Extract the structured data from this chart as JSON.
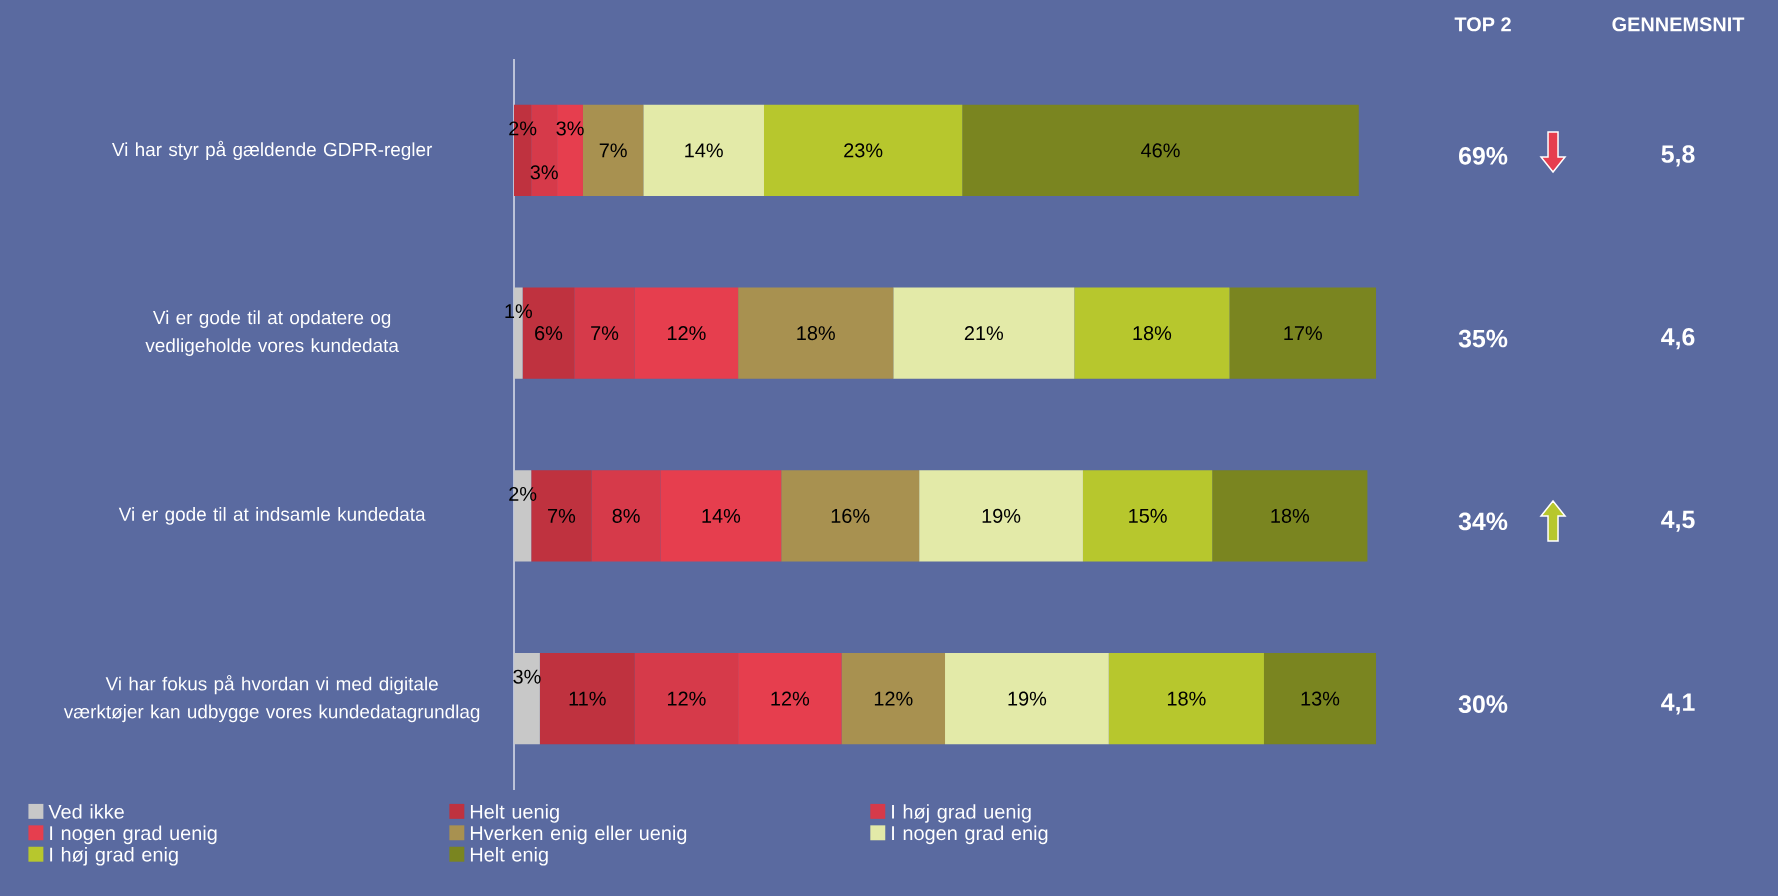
{
  "chart_data": {
    "type": "bar",
    "orientation": "horizontal",
    "stacked": true,
    "legend": "bottom",
    "tick_labels": "y",
    "xlim": [
      0,
      100
    ],
    "categories": [
      "Vi har styr på gældende GDPR-regler",
      "Vi er gode til at opdatere og vedligeholde vores kundedata",
      "Vi er gode til at indsamle kundedata",
      "Vi har fokus på hvordan vi med digitale værktøjer kan udbygge vores kundedatagrundlag"
    ],
    "series": [
      {
        "name": "Ved ikke",
        "color": "#c8c8c8",
        "values": [
          0,
          1,
          2,
          3
        ],
        "value_labels": [
          null,
          "1%",
          "2%",
          "3%"
        ]
      },
      {
        "name": "Helt uenig",
        "color": "#bf323f",
        "values": [
          2,
          6,
          7,
          11
        ],
        "value_labels": [
          "2%",
          "6%",
          "7%",
          "11%"
        ]
      },
      {
        "name": "I høj grad uenig",
        "color": "#d63a4a",
        "values": [
          3,
          7,
          8,
          12
        ],
        "value_labels": [
          "3%",
          "7%",
          "8%",
          "12%"
        ]
      },
      {
        "name": "I nogen grad uenig",
        "color": "#e63e4e",
        "values": [
          3,
          12,
          14,
          12
        ],
        "value_labels": [
          "3%",
          "12%",
          "14%",
          "12%"
        ]
      },
      {
        "name": "Hverken enig eller uenig",
        "color": "#a89150",
        "values": [
          7,
          18,
          16,
          12
        ],
        "value_labels": [
          "7%",
          "18%",
          "16%",
          "12%"
        ]
      },
      {
        "name": "I nogen grad enig",
        "color": "#e3eaa8",
        "values": [
          14,
          21,
          19,
          19
        ],
        "value_labels": [
          "14%",
          "21%",
          "19%",
          "19%"
        ]
      },
      {
        "name": "I høj grad enig",
        "color": "#b7c72d",
        "values": [
          23,
          18,
          15,
          18
        ],
        "value_labels": [
          "23%",
          "18%",
          "15%",
          "18%"
        ]
      },
      {
        "name": "Helt enig",
        "color": "#7a8520",
        "values": [
          46,
          17,
          18,
          13
        ],
        "value_labels": [
          "46%",
          "17%",
          "18%",
          "13%"
        ]
      }
    ],
    "annotations": [
      "TOP 2",
      "GENNEMSNIT",
      "69%",
      "5,8",
      "35%",
      "4,6",
      "34%",
      "4,5",
      "30%",
      "4,1"
    ]
  }
}
